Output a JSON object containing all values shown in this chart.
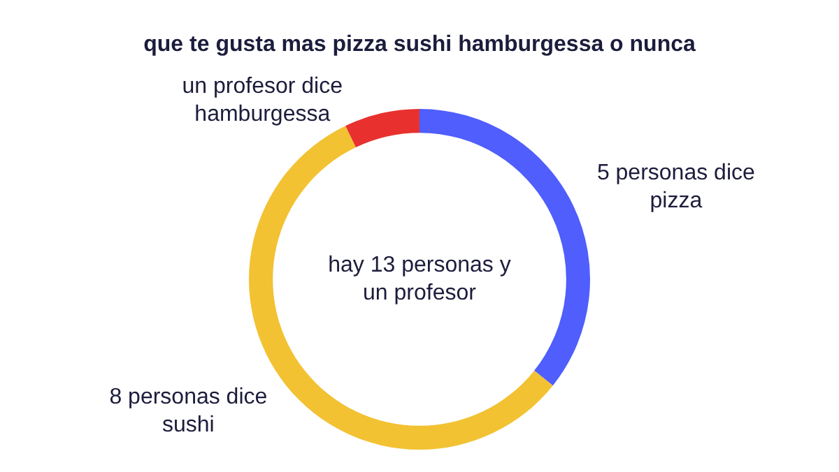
{
  "chart_data": {
    "type": "donut",
    "title": "que te gusta mas pizza sushi hamburgessa o nunca",
    "categories": [
      "5 personas dice pizza",
      "8 personas dice sushi",
      "un profesor dice hamburgessa"
    ],
    "values": [
      5,
      8,
      1
    ],
    "colors": [
      "#4f5efc",
      "#f2c232",
      "#e8312f"
    ],
    "annotations": [
      "hay 13 personas y un profesor"
    ],
    "legend": false
  }
}
